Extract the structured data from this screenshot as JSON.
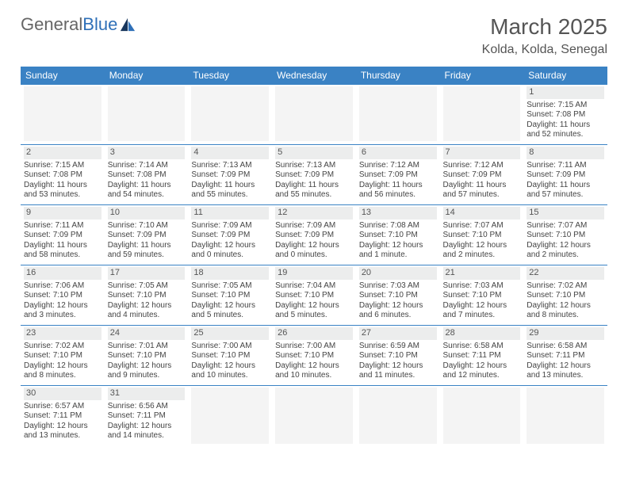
{
  "logo": {
    "textGray": "General",
    "textBlue": "Blue"
  },
  "header": {
    "title": "March 2025",
    "location": "Kolda, Kolda, Senegal"
  },
  "colors": {
    "headerBg": "#3a82c4",
    "headerText": "#ffffff",
    "cellBorder": "#3a82c4",
    "daynumBg": "#eceded",
    "emptyBg": "#f4f4f4",
    "bodyText": "#444444"
  },
  "weekdays": [
    "Sunday",
    "Monday",
    "Tuesday",
    "Wednesday",
    "Thursday",
    "Friday",
    "Saturday"
  ],
  "weeks": [
    [
      null,
      null,
      null,
      null,
      null,
      null,
      {
        "d": "1",
        "sr": "7:15 AM",
        "ss": "7:08 PM",
        "dl": "11 hours and 52 minutes."
      }
    ],
    [
      {
        "d": "2",
        "sr": "7:15 AM",
        "ss": "7:08 PM",
        "dl": "11 hours and 53 minutes."
      },
      {
        "d": "3",
        "sr": "7:14 AM",
        "ss": "7:08 PM",
        "dl": "11 hours and 54 minutes."
      },
      {
        "d": "4",
        "sr": "7:13 AM",
        "ss": "7:09 PM",
        "dl": "11 hours and 55 minutes."
      },
      {
        "d": "5",
        "sr": "7:13 AM",
        "ss": "7:09 PM",
        "dl": "11 hours and 55 minutes."
      },
      {
        "d": "6",
        "sr": "7:12 AM",
        "ss": "7:09 PM",
        "dl": "11 hours and 56 minutes."
      },
      {
        "d": "7",
        "sr": "7:12 AM",
        "ss": "7:09 PM",
        "dl": "11 hours and 57 minutes."
      },
      {
        "d": "8",
        "sr": "7:11 AM",
        "ss": "7:09 PM",
        "dl": "11 hours and 57 minutes."
      }
    ],
    [
      {
        "d": "9",
        "sr": "7:11 AM",
        "ss": "7:09 PM",
        "dl": "11 hours and 58 minutes."
      },
      {
        "d": "10",
        "sr": "7:10 AM",
        "ss": "7:09 PM",
        "dl": "11 hours and 59 minutes."
      },
      {
        "d": "11",
        "sr": "7:09 AM",
        "ss": "7:09 PM",
        "dl": "12 hours and 0 minutes."
      },
      {
        "d": "12",
        "sr": "7:09 AM",
        "ss": "7:09 PM",
        "dl": "12 hours and 0 minutes."
      },
      {
        "d": "13",
        "sr": "7:08 AM",
        "ss": "7:10 PM",
        "dl": "12 hours and 1 minute."
      },
      {
        "d": "14",
        "sr": "7:07 AM",
        "ss": "7:10 PM",
        "dl": "12 hours and 2 minutes."
      },
      {
        "d": "15",
        "sr": "7:07 AM",
        "ss": "7:10 PM",
        "dl": "12 hours and 2 minutes."
      }
    ],
    [
      {
        "d": "16",
        "sr": "7:06 AM",
        "ss": "7:10 PM",
        "dl": "12 hours and 3 minutes."
      },
      {
        "d": "17",
        "sr": "7:05 AM",
        "ss": "7:10 PM",
        "dl": "12 hours and 4 minutes."
      },
      {
        "d": "18",
        "sr": "7:05 AM",
        "ss": "7:10 PM",
        "dl": "12 hours and 5 minutes."
      },
      {
        "d": "19",
        "sr": "7:04 AM",
        "ss": "7:10 PM",
        "dl": "12 hours and 5 minutes."
      },
      {
        "d": "20",
        "sr": "7:03 AM",
        "ss": "7:10 PM",
        "dl": "12 hours and 6 minutes."
      },
      {
        "d": "21",
        "sr": "7:03 AM",
        "ss": "7:10 PM",
        "dl": "12 hours and 7 minutes."
      },
      {
        "d": "22",
        "sr": "7:02 AM",
        "ss": "7:10 PM",
        "dl": "12 hours and 8 minutes."
      }
    ],
    [
      {
        "d": "23",
        "sr": "7:02 AM",
        "ss": "7:10 PM",
        "dl": "12 hours and 8 minutes."
      },
      {
        "d": "24",
        "sr": "7:01 AM",
        "ss": "7:10 PM",
        "dl": "12 hours and 9 minutes."
      },
      {
        "d": "25",
        "sr": "7:00 AM",
        "ss": "7:10 PM",
        "dl": "12 hours and 10 minutes."
      },
      {
        "d": "26",
        "sr": "7:00 AM",
        "ss": "7:10 PM",
        "dl": "12 hours and 10 minutes."
      },
      {
        "d": "27",
        "sr": "6:59 AM",
        "ss": "7:10 PM",
        "dl": "12 hours and 11 minutes."
      },
      {
        "d": "28",
        "sr": "6:58 AM",
        "ss": "7:11 PM",
        "dl": "12 hours and 12 minutes."
      },
      {
        "d": "29",
        "sr": "6:58 AM",
        "ss": "7:11 PM",
        "dl": "12 hours and 13 minutes."
      }
    ],
    [
      {
        "d": "30",
        "sr": "6:57 AM",
        "ss": "7:11 PM",
        "dl": "12 hours and 13 minutes."
      },
      {
        "d": "31",
        "sr": "6:56 AM",
        "ss": "7:11 PM",
        "dl": "12 hours and 14 minutes."
      },
      null,
      null,
      null,
      null,
      null
    ]
  ],
  "labels": {
    "sunrise": "Sunrise: ",
    "sunset": "Sunset: ",
    "daylight": "Daylight: "
  }
}
